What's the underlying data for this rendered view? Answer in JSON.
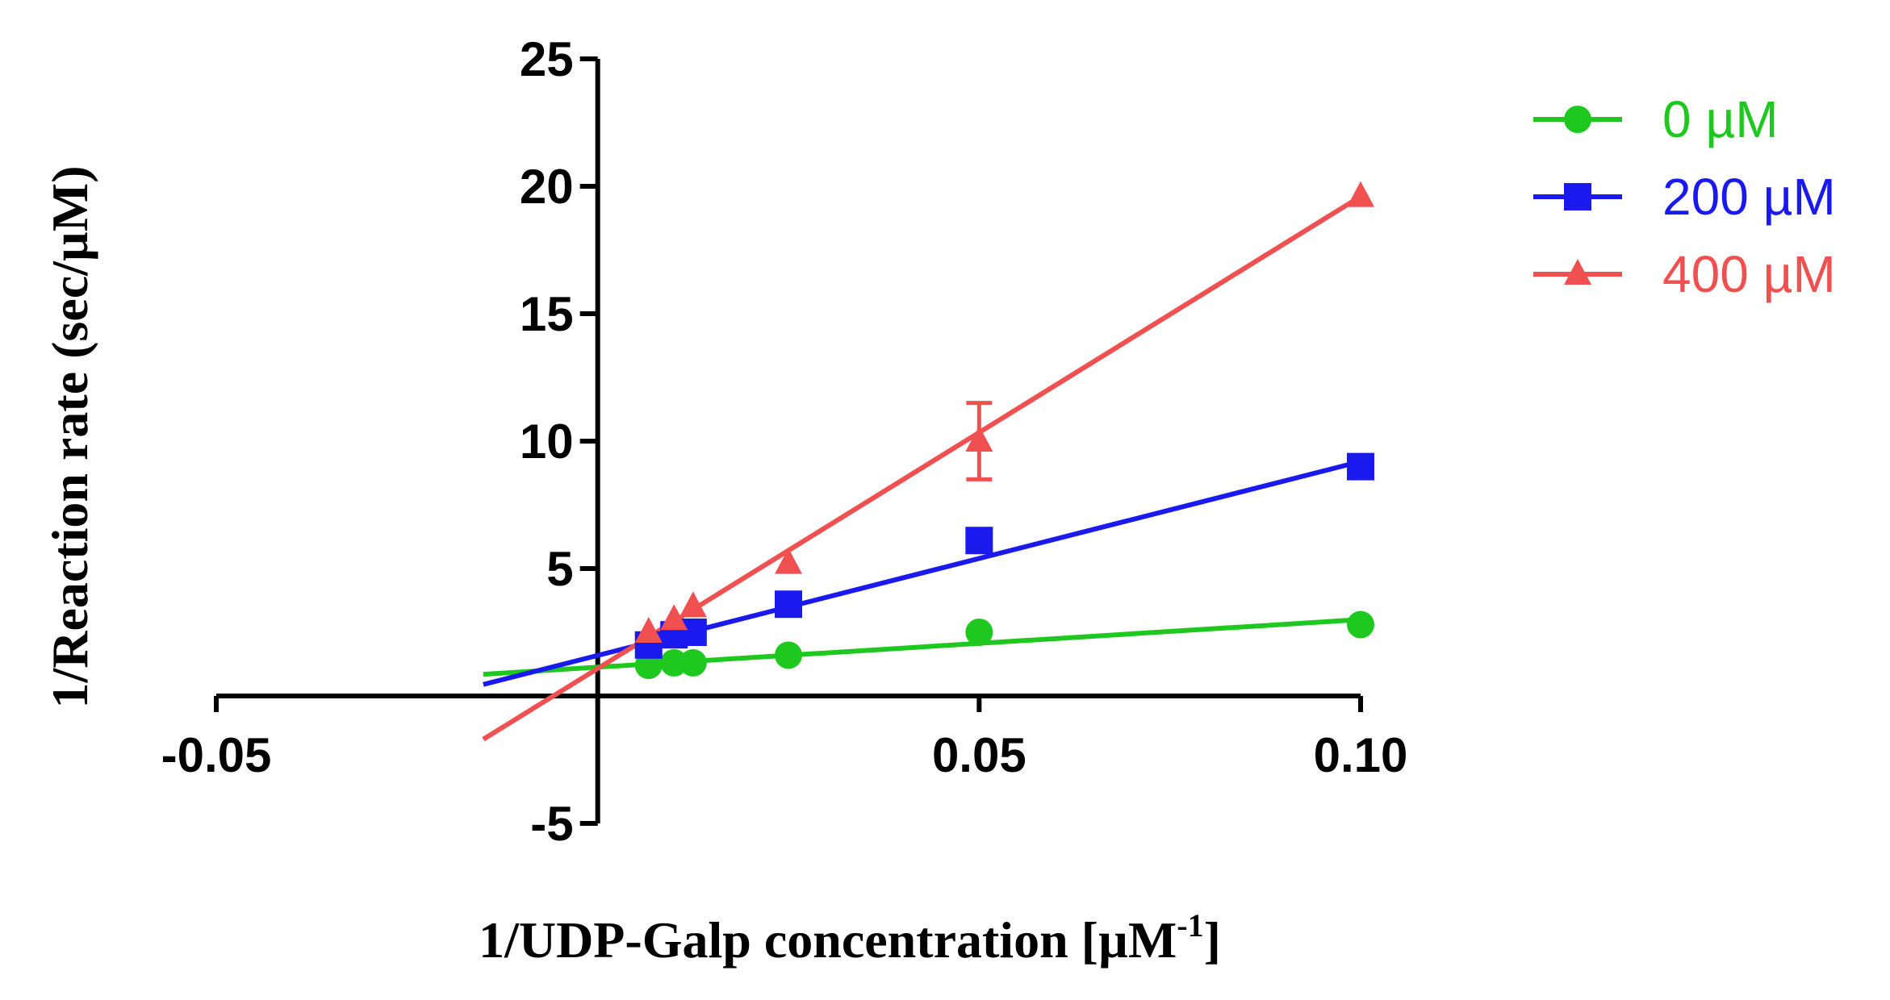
{
  "chart_data": {
    "type": "line",
    "title": "",
    "xlabel": "1/UDP-Galp concentration [µM",
    "xlabel_superscript": "-1",
    "xlabel_close": "]",
    "ylabel": "1/Reaction rate (sec/µM)",
    "xlim": [
      -0.05,
      0.1
    ],
    "ylim": [
      -5,
      25
    ],
    "x_ticks": [
      {
        "value": -0.05,
        "label": "-0.05"
      },
      {
        "value": 0.05,
        "label": "0.05"
      },
      {
        "value": 0.1,
        "label": "0.10"
      }
    ],
    "y_ticks": [
      {
        "value": -5,
        "label": "-5"
      },
      {
        "value": 5,
        "label": "5"
      },
      {
        "value": 10,
        "label": "10"
      },
      {
        "value": 15,
        "label": "15"
      },
      {
        "value": 20,
        "label": "20"
      },
      {
        "value": 25,
        "label": "25"
      }
    ],
    "legend_position": "top-right",
    "series": [
      {
        "name": "0 µM",
        "color": "#1ec81e",
        "marker": "circle",
        "points": [
          {
            "x": 0.00667,
            "y": 1.2
          },
          {
            "x": 0.01,
            "y": 1.3
          },
          {
            "x": 0.0125,
            "y": 1.3
          },
          {
            "x": 0.025,
            "y": 1.6
          },
          {
            "x": 0.05,
            "y": 2.5
          },
          {
            "x": 0.1,
            "y": 2.8
          }
        ],
        "fit": {
          "x0": -0.015,
          "y0": 0.85,
          "x1": 0.1,
          "y1": 3.0
        }
      },
      {
        "name": "200 µM",
        "color": "#1a1aee",
        "marker": "square",
        "points": [
          {
            "x": 0.00667,
            "y": 2.0
          },
          {
            "x": 0.01,
            "y": 2.4
          },
          {
            "x": 0.0125,
            "y": 2.5
          },
          {
            "x": 0.025,
            "y": 3.6
          },
          {
            "x": 0.05,
            "y": 6.1
          },
          {
            "x": 0.1,
            "y": 9.0
          }
        ],
        "fit": {
          "x0": -0.015,
          "y0": 0.45,
          "x1": 0.1,
          "y1": 9.2
        }
      },
      {
        "name": "400 µM",
        "color": "#f05050",
        "marker": "triangle",
        "points": [
          {
            "x": 0.00667,
            "y": 2.5
          },
          {
            "x": 0.01,
            "y": 3.0
          },
          {
            "x": 0.0125,
            "y": 3.5
          },
          {
            "x": 0.025,
            "y": 5.2
          },
          {
            "x": 0.05,
            "y": 10.0,
            "err_low": 8.5,
            "err_high": 11.5
          },
          {
            "x": 0.1,
            "y": 19.6
          }
        ],
        "fit": {
          "x0": -0.015,
          "y0": -1.7,
          "x1": 0.1,
          "y1": 19.6
        }
      }
    ]
  }
}
